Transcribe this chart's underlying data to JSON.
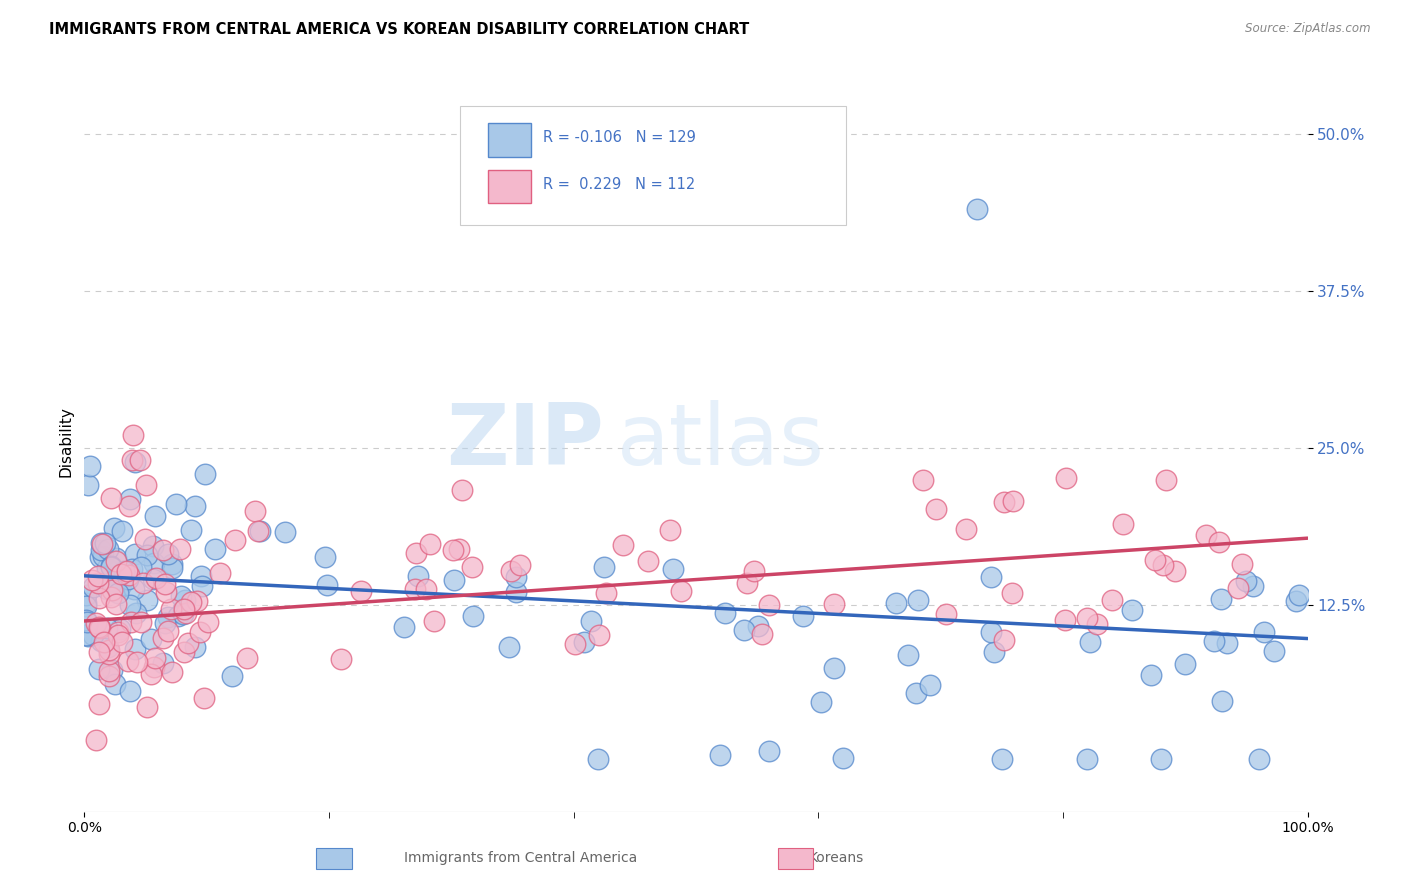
{
  "title": "IMMIGRANTS FROM CENTRAL AMERICA VS KOREAN DISABILITY CORRELATION CHART",
  "source": "Source: ZipAtlas.com",
  "ylabel": "Disability",
  "color_blue_fill": "#a8c8e8",
  "color_blue_edge": "#5588cc",
  "color_pink_fill": "#f4b8cc",
  "color_pink_edge": "#e06080",
  "color_blue_line": "#3366bb",
  "color_pink_line": "#cc4466",
  "color_axis_label": "#4472C4",
  "color_grid": "#cccccc",
  "xlim": [
    0.0,
    1.0
  ],
  "ylim": [
    -0.04,
    0.55
  ],
  "yticks": [
    0.125,
    0.25,
    0.375,
    0.5
  ],
  "ytick_labels": [
    "12.5%",
    "25.0%",
    "37.5%",
    "50.0%"
  ],
  "blue_trend_x": [
    0.0,
    1.0
  ],
  "blue_trend_y": [
    0.148,
    0.098
  ],
  "pink_trend_x": [
    0.0,
    1.0
  ],
  "pink_trend_y": [
    0.112,
    0.178
  ],
  "watermark": "ZIPatlas",
  "legend_line1": "R = -0.106   N = 129",
  "legend_line2": "R =  0.229   N = 112"
}
